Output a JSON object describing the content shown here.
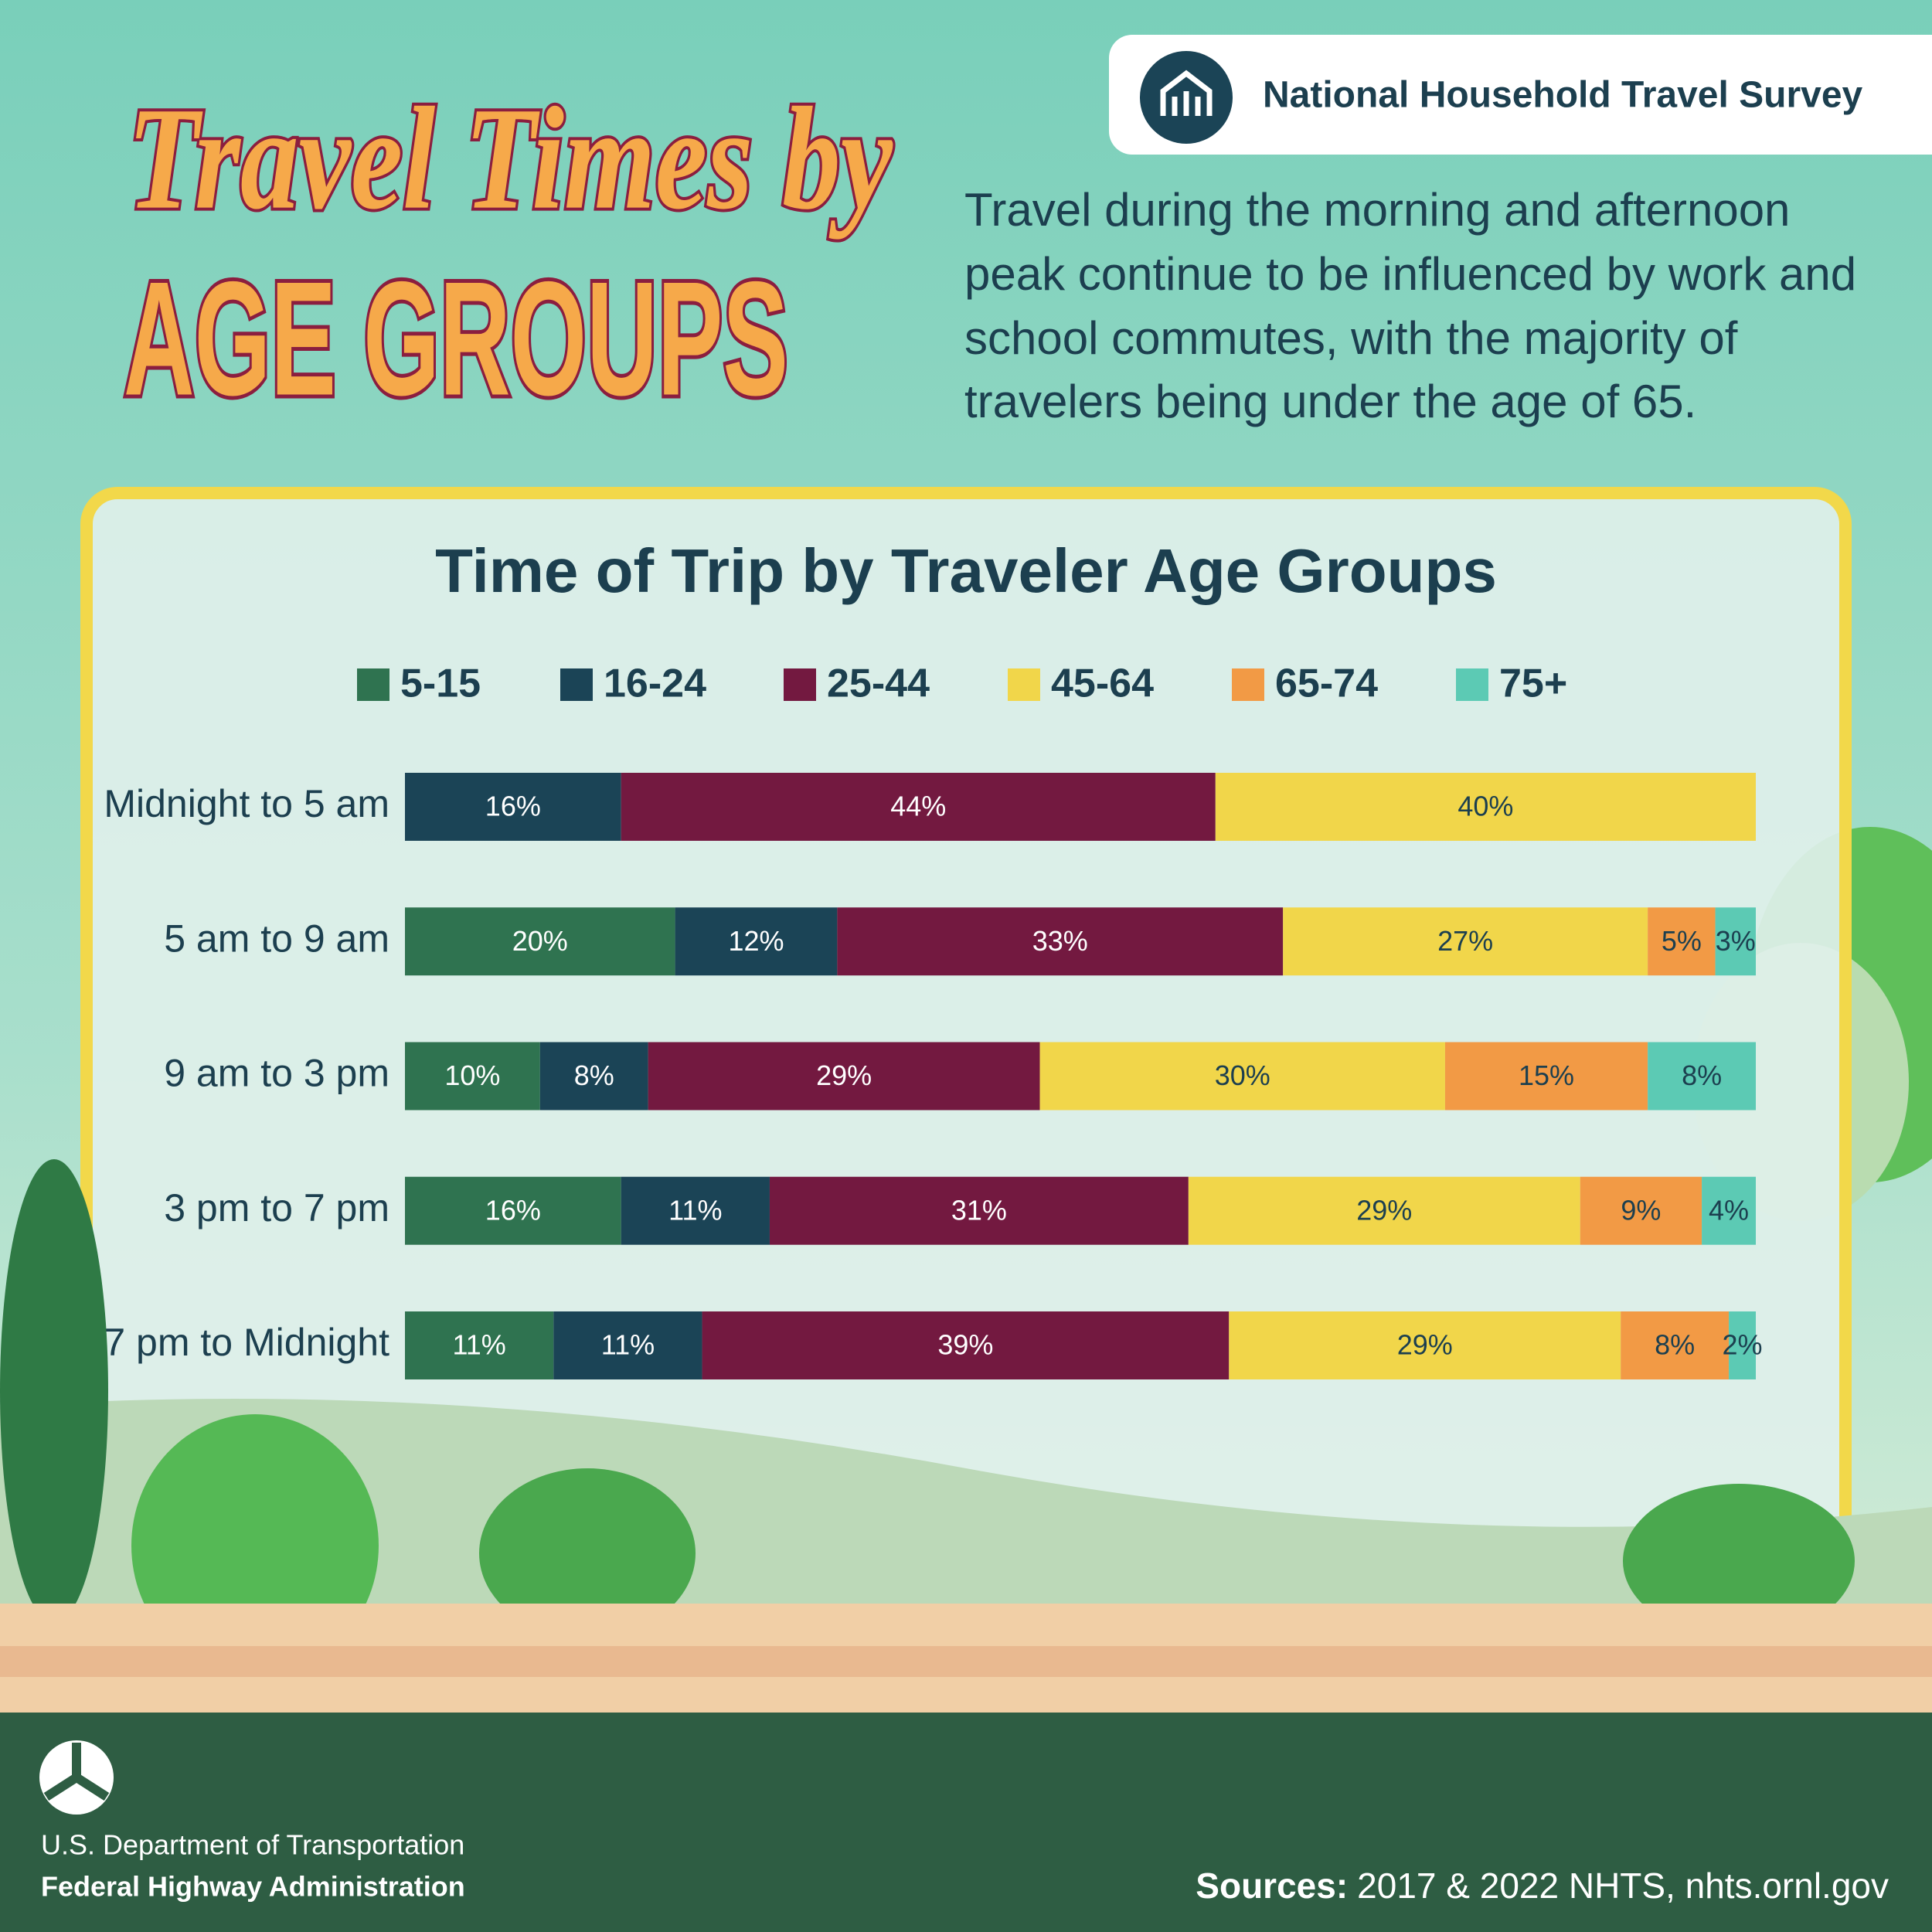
{
  "title_line1": "Travel Times by",
  "title_line2": "AGE GROUPS",
  "badge": "National Household Travel Survey",
  "description_lines": [
    "Travel during the morning and afternoon",
    "peak continue to be influenced by work and",
    "school commutes, with the majority of",
    "travelers being under the age of 65."
  ],
  "chart_data": {
    "type": "stacked-bar-horizontal",
    "title": "Time of Trip by Traveler Age Groups",
    "categories": [
      "Midnight to 5 am",
      "5 am to 9 am",
      "9 am to 3 pm",
      "3 pm to 7 pm",
      "7 pm to Midnight"
    ],
    "series": [
      {
        "name": "5-15",
        "color": "#2f7350",
        "values": [
          null,
          20,
          10,
          16,
          11
        ],
        "value_labels": [
          null,
          "20%",
          "10%",
          "16%",
          "11%"
        ]
      },
      {
        "name": "16-24",
        "color": "#1b4456",
        "values": [
          16,
          12,
          8,
          11,
          11
        ],
        "value_labels": [
          "16%",
          "12%",
          "8%",
          "11%",
          "11%"
        ]
      },
      {
        "name": "25-44",
        "color": "#731940",
        "values": [
          44,
          33,
          29,
          31,
          39
        ],
        "value_labels": [
          "44%",
          "33%",
          "29%",
          "31%",
          "39%"
        ]
      },
      {
        "name": "45-64",
        "color": "#f1d64a",
        "values": [
          40,
          27,
          30,
          29,
          29
        ],
        "value_labels": [
          "40%",
          "27%",
          "30%",
          "29%",
          "29%"
        ]
      },
      {
        "name": "65-74",
        "color": "#f29a45",
        "values": [
          null,
          5,
          15,
          9,
          8
        ],
        "value_labels": [
          null,
          "5%",
          "15%",
          "9%",
          "8%"
        ]
      },
      {
        "name": "75+",
        "color": "#5ccab4",
        "values": [
          null,
          3,
          8,
          4,
          2
        ],
        "value_labels": [
          null,
          "3%",
          "8%",
          "4%",
          "2%"
        ]
      }
    ]
  },
  "footer": {
    "department": "U.S. Department of Transportation",
    "agency": "Federal Highway Administration",
    "sources_label": "Sources:",
    "sources": "2017 & 2022 NHTS, nhts.ornl.gov"
  }
}
